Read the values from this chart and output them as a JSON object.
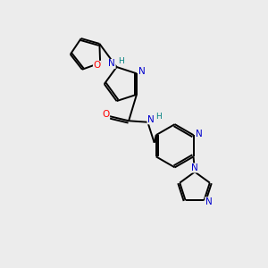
{
  "bg_color": "#ececec",
  "bond_color": "#000000",
  "atom_colors": {
    "O": "#ff0000",
    "N": "#0000cd",
    "NH": "#008080",
    "C": "#000000"
  },
  "figsize": [
    3.0,
    3.0
  ],
  "dpi": 100
}
